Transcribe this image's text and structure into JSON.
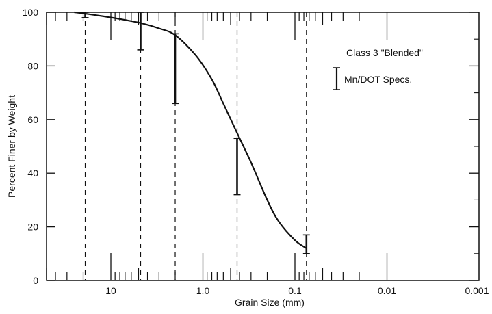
{
  "chart_data": {
    "type": "line",
    "title": "",
    "xlabel": "Grain Size (mm)",
    "ylabel": "Percent Finer by Weight",
    "x_scale": "log-reversed",
    "xlim": [
      50,
      0.001
    ],
    "ylim": [
      0,
      100
    ],
    "x_ticks": [
      {
        "value": 10,
        "label": "10"
      },
      {
        "value": 1.0,
        "label": "1.0"
      },
      {
        "value": 0.1,
        "label": "0.1"
      },
      {
        "value": 0.01,
        "label": "0.01"
      },
      {
        "value": 0.001,
        "label": "0.001"
      }
    ],
    "y_ticks": [
      0,
      20,
      40,
      60,
      80,
      100
    ],
    "sieve_lines": [
      19,
      4.75,
      2.0,
      0.425,
      0.075
    ],
    "series": [
      {
        "name": "Class 3 \"Blended\"",
        "x": [
          25,
          19,
          12,
          8,
          4.75,
          3,
          2.0,
          1.2,
          0.8,
          0.6,
          0.425,
          0.3,
          0.2,
          0.15,
          0.1,
          0.075
        ],
        "y": [
          100,
          99.5,
          98.5,
          97.5,
          96,
          94,
          91.5,
          84,
          75,
          66,
          55,
          44,
          30,
          22,
          15,
          12
        ]
      }
    ],
    "spec_bars": [
      {
        "x": 19,
        "low": 98,
        "high": 100
      },
      {
        "x": 4.75,
        "low": 86,
        "high": 100
      },
      {
        "x": 2.0,
        "low": 66,
        "high": 92
      },
      {
        "x": 0.425,
        "low": 32,
        "high": 53
      },
      {
        "x": 0.075,
        "low": 10,
        "high": 17
      }
    ],
    "legend": {
      "series_label": "Class 3 \"Blended\"",
      "spec_label": "Mn/DOT Specs.",
      "placement": "top-right"
    },
    "grid": false
  }
}
